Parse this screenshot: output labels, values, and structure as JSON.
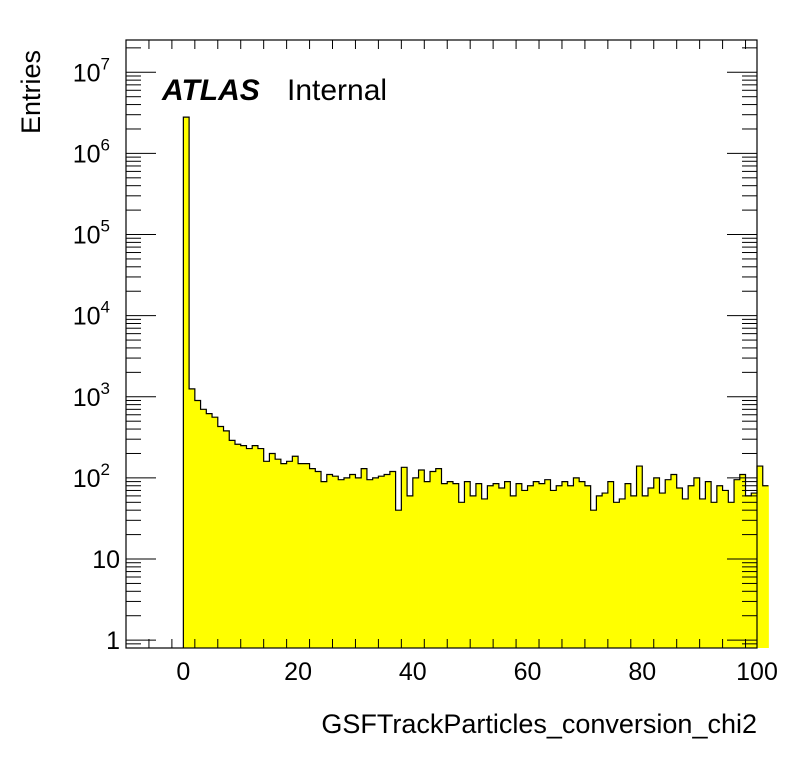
{
  "chart_data": {
    "type": "bar",
    "xlabel": "GSFTrackParticles_conversion_chi2",
    "ylabel": "Entries",
    "xlim": [
      -10,
      100
    ],
    "ylim": [
      0.8,
      25000000
    ],
    "yscale": "log",
    "grid": false,
    "bar_color": "#ffff00",
    "x_ticks": [
      {
        "value": 0,
        "label": "0"
      },
      {
        "value": 20,
        "label": "20"
      },
      {
        "value": 40,
        "label": "40"
      },
      {
        "value": 60,
        "label": "60"
      },
      {
        "value": 80,
        "label": "80"
      },
      {
        "value": 100,
        "label": "100"
      }
    ],
    "y_ticks": [
      {
        "value": 1,
        "base": "1",
        "exp": ""
      },
      {
        "value": 10,
        "base": "10",
        "exp": ""
      },
      {
        "value": 100,
        "base": "10",
        "exp": "2"
      },
      {
        "value": 1000,
        "base": "10",
        "exp": "3"
      },
      {
        "value": 10000,
        "base": "10",
        "exp": "4"
      },
      {
        "value": 100000,
        "base": "10",
        "exp": "5"
      },
      {
        "value": 1000000,
        "base": "10",
        "exp": "6"
      },
      {
        "value": 10000000,
        "base": "10",
        "exp": "7"
      }
    ],
    "bin_start": 0,
    "bin_width": 1,
    "values": [
      2800000,
      1250,
      900,
      700,
      620,
      560,
      430,
      380,
      290,
      260,
      250,
      230,
      250,
      230,
      160,
      200,
      170,
      150,
      160,
      185,
      150,
      150,
      130,
      120,
      90,
      110,
      105,
      95,
      100,
      110,
      100,
      130,
      95,
      100,
      105,
      110,
      120,
      40,
      135,
      60,
      100,
      125,
      90,
      120,
      130,
      85,
      90,
      85,
      50,
      90,
      60,
      85,
      55,
      80,
      85,
      75,
      90,
      60,
      85,
      70,
      80,
      90,
      85,
      95,
      70,
      80,
      90,
      80,
      100,
      90,
      80,
      40,
      60,
      65,
      90,
      50,
      55,
      85,
      60,
      140,
      60,
      75,
      100,
      65,
      95,
      110,
      75,
      55,
      80,
      100,
      55,
      90,
      50,
      80,
      70,
      50,
      95,
      110,
      60,
      65,
      140,
      80
    ]
  },
  "annotations": {
    "atlas": "ATLAS",
    "internal": "Internal"
  }
}
